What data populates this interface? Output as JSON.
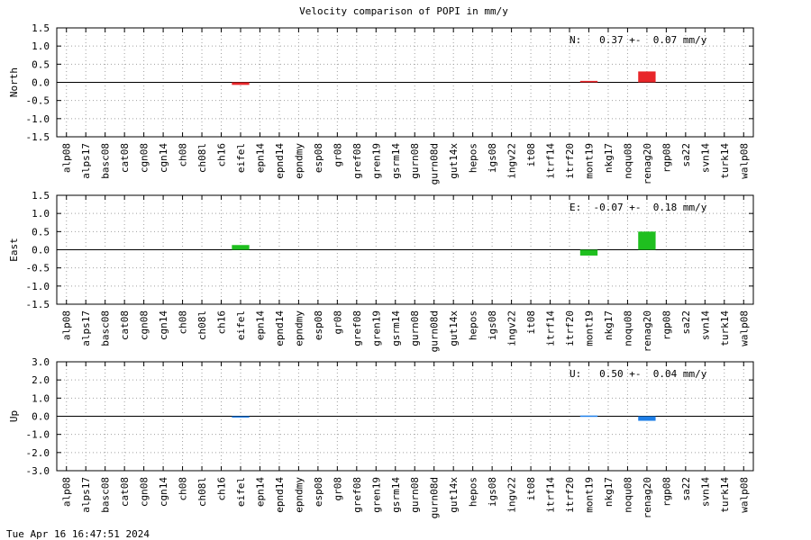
{
  "title": "Velocity comparison of POPI in mm/y",
  "timestamp": "Tue Apr 16 16:47:51 2024",
  "chart_data": [
    {
      "type": "bar",
      "ylabel": "North",
      "ylim": [
        -1.5,
        1.5
      ],
      "yticks": [
        "1.5",
        "1.0",
        "0.5",
        "0.0",
        "-0.5",
        "-1.0",
        "-1.5"
      ],
      "color": "#e8262a",
      "stats": "N:   0.37 +-  0.07 mm/y",
      "categories": [
        "alp08",
        "alps17",
        "basc08",
        "cat08",
        "cgn08",
        "cgn14",
        "ch08",
        "ch08l",
        "ch16",
        "eifel",
        "epn14",
        "epnd14",
        "epndmy",
        "esp08",
        "gr08",
        "gref08",
        "gren19",
        "gsrm14",
        "gurn08",
        "gurn08d",
        "gut14x",
        "hepos",
        "igs08",
        "ingv22",
        "it08",
        "itrf14",
        "itrf20",
        "mont19",
        "nkg17",
        "noqu08",
        "renag20",
        "rgp08",
        "sa22",
        "svn14",
        "turk14",
        "walp08"
      ],
      "values": [
        0,
        0,
        0,
        0,
        0,
        0,
        0,
        0,
        0,
        -0.07,
        0,
        0,
        0,
        0,
        0,
        0,
        0,
        0,
        0,
        0,
        0,
        0,
        0,
        0,
        0,
        0,
        0,
        0.04,
        0,
        0,
        0.3,
        0,
        0,
        0,
        0,
        0
      ]
    },
    {
      "type": "bar",
      "ylabel": "East",
      "ylim": [
        -1.5,
        1.5
      ],
      "yticks": [
        "1.5",
        "1.0",
        "0.5",
        "0.0",
        "-0.5",
        "-1.0",
        "-1.5"
      ],
      "color": "#1fbf1f",
      "stats": "E:  -0.07 +-  0.18 mm/y",
      "categories": [
        "alp08",
        "alps17",
        "basc08",
        "cat08",
        "cgn08",
        "cgn14",
        "ch08",
        "ch08l",
        "ch16",
        "eifel",
        "epn14",
        "epnd14",
        "epndmy",
        "esp08",
        "gr08",
        "gref08",
        "gren19",
        "gsrm14",
        "gurn08",
        "gurn08d",
        "gut14x",
        "hepos",
        "igs08",
        "ingv22",
        "it08",
        "itrf14",
        "itrf20",
        "mont19",
        "nkg17",
        "noqu08",
        "renag20",
        "rgp08",
        "sa22",
        "svn14",
        "turk14",
        "walp08"
      ],
      "values": [
        0,
        0,
        0,
        0,
        0,
        0,
        0,
        0,
        0,
        0.13,
        0,
        0,
        0,
        0,
        0,
        0,
        0,
        0,
        0,
        0,
        0,
        0,
        0,
        0,
        0,
        0,
        0,
        -0.16,
        0,
        0,
        0.5,
        0,
        0,
        0,
        0,
        0
      ]
    },
    {
      "type": "bar",
      "ylabel": "Up",
      "ylim": [
        -3.0,
        3.0
      ],
      "yticks": [
        "3.0",
        "2.0",
        "1.0",
        "0.0",
        "-1.0",
        "-2.0",
        "-3.0"
      ],
      "color": "#1f7fe8",
      "stats": "U:   0.50 +-  0.04 mm/y",
      "categories": [
        "alp08",
        "alps17",
        "basc08",
        "cat08",
        "cgn08",
        "cgn14",
        "ch08",
        "ch08l",
        "ch16",
        "eifel",
        "epn14",
        "epnd14",
        "epndmy",
        "esp08",
        "gr08",
        "gref08",
        "gren19",
        "gsrm14",
        "gurn08",
        "gurn08d",
        "gut14x",
        "hepos",
        "igs08",
        "ingv22",
        "it08",
        "itrf14",
        "itrf20",
        "mont19",
        "nkg17",
        "noqu08",
        "renag20",
        "rgp08",
        "sa22",
        "svn14",
        "turk14",
        "walp08"
      ],
      "values": [
        0,
        0,
        0,
        0,
        0,
        0,
        0,
        0,
        0,
        -0.05,
        0,
        0,
        0,
        0,
        0,
        0,
        0,
        0,
        0,
        0,
        0,
        0,
        0,
        0,
        0,
        0,
        0,
        0.04,
        0,
        0,
        -0.25,
        0,
        0,
        0,
        0,
        0
      ]
    }
  ]
}
